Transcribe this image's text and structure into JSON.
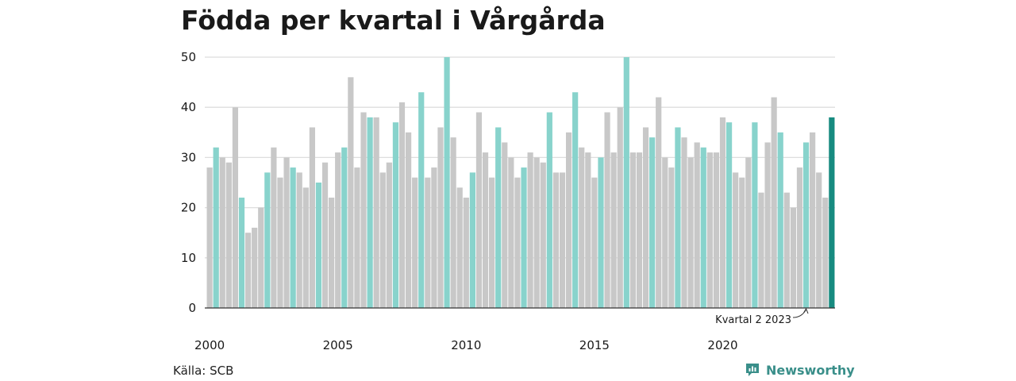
{
  "title": "Födda per kvartal i Vårgårda",
  "source": "Källa: SCB",
  "brand": "Newsworthy",
  "chart_data": {
    "type": "bar",
    "y_ticks": [
      0,
      10,
      20,
      30,
      40,
      50
    ],
    "ylim": [
      0,
      50
    ],
    "x_tick_labels": [
      {
        "label": "2000",
        "index": 0
      },
      {
        "label": "2005",
        "index": 20
      },
      {
        "label": "2010",
        "index": 40
      },
      {
        "label": "2015",
        "index": 60
      },
      {
        "label": "2020",
        "index": 80
      }
    ],
    "highlight_quarter": 2,
    "colors": {
      "normal": "#c8c8c8",
      "quarter2": "#88d3cc",
      "last": "#178b80",
      "grid": "#dedede",
      "axis": "#333333"
    },
    "annotation": {
      "text": "Kvartal 2 2023",
      "index": 93
    },
    "values": [
      28,
      32,
      30,
      29,
      40,
      22,
      15,
      16,
      20,
      27,
      32,
      26,
      30,
      28,
      27,
      24,
      36,
      25,
      29,
      22,
      31,
      32,
      46,
      28,
      39,
      38,
      38,
      27,
      29,
      37,
      41,
      35,
      26,
      43,
      26,
      28,
      36,
      50,
      34,
      24,
      22,
      27,
      39,
      31,
      26,
      36,
      33,
      30,
      26,
      28,
      31,
      30,
      29,
      39,
      27,
      27,
      35,
      43,
      32,
      31,
      26,
      30,
      39,
      31,
      40,
      50,
      31,
      31,
      36,
      34,
      42,
      30,
      28,
      36,
      34,
      30,
      33,
      32,
      31,
      31,
      38,
      37,
      27,
      26,
      30,
      37,
      23,
      33,
      42,
      35,
      23,
      20,
      28,
      33,
      35,
      27,
      22,
      38
    ]
  }
}
